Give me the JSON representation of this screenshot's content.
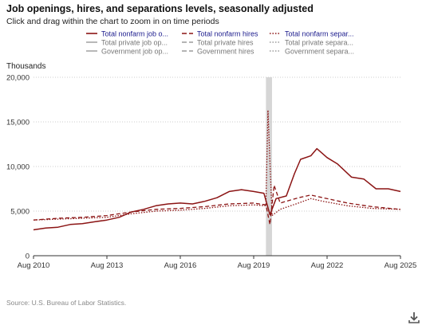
{
  "title": "Job openings, hires, and separations levels, seasonally adjusted",
  "subtitle": "Click and drag within the chart to zoom in on time periods",
  "source": "Source: U.S. Bureau of Labor Statistics.",
  "download_icon": "download-icon",
  "colors": {
    "primary": "#8b1414",
    "secondary": "#888888",
    "legend_active_text": "#1a1a8c",
    "legend_inactive_text": "#777777",
    "recession": "#cfcfcf"
  },
  "chart_data": {
    "type": "line",
    "ylabel": "Thousands",
    "ylim": [
      0,
      20000
    ],
    "yticks": [
      "0",
      "5,000",
      "10,000",
      "15,000",
      "20,000"
    ],
    "xlim": [
      "2010-08",
      "2025-08"
    ],
    "xticks": [
      "Aug 2010",
      "Aug 2013",
      "Aug 2016",
      "Aug 2019",
      "Aug 2022",
      "Aug 2025"
    ],
    "grid": true,
    "legend_placement": "top",
    "shaded_period": [
      "2020-02",
      "2020-05"
    ],
    "series": [
      {
        "name": "Total nonfarm job o...",
        "style": "solid",
        "visible": true,
        "values": [
          [
            "2010-08",
            2900
          ],
          [
            "2011-02",
            3100
          ],
          [
            "2011-08",
            3200
          ],
          [
            "2012-02",
            3500
          ],
          [
            "2012-08",
            3600
          ],
          [
            "2013-02",
            3800
          ],
          [
            "2013-08",
            4000
          ],
          [
            "2014-02",
            4300
          ],
          [
            "2014-08",
            4900
          ],
          [
            "2015-02",
            5200
          ],
          [
            "2015-08",
            5600
          ],
          [
            "2016-02",
            5800
          ],
          [
            "2016-08",
            5900
          ],
          [
            "2017-02",
            5800
          ],
          [
            "2017-08",
            6100
          ],
          [
            "2018-02",
            6500
          ],
          [
            "2018-08",
            7200
          ],
          [
            "2019-02",
            7400
          ],
          [
            "2019-08",
            7200
          ],
          [
            "2020-01",
            7000
          ],
          [
            "2020-04",
            4600
          ],
          [
            "2020-07",
            6400
          ],
          [
            "2020-12",
            6700
          ],
          [
            "2021-04",
            9200
          ],
          [
            "2021-07",
            10800
          ],
          [
            "2021-12",
            11200
          ],
          [
            "2022-03",
            12000
          ],
          [
            "2022-08",
            11000
          ],
          [
            "2023-01",
            10300
          ],
          [
            "2023-08",
            8800
          ],
          [
            "2024-02",
            8600
          ],
          [
            "2024-08",
            7500
          ],
          [
            "2025-02",
            7500
          ],
          [
            "2025-08",
            7200
          ]
        ]
      },
      {
        "name": "Total nonfarm hires",
        "style": "dashed",
        "visible": true,
        "values": [
          [
            "2010-08",
            4000
          ],
          [
            "2011-08",
            4200
          ],
          [
            "2012-08",
            4300
          ],
          [
            "2013-08",
            4500
          ],
          [
            "2014-08",
            4900
          ],
          [
            "2015-08",
            5200
          ],
          [
            "2016-08",
            5300
          ],
          [
            "2017-08",
            5500
          ],
          [
            "2018-08",
            5800
          ],
          [
            "2019-08",
            5900
          ],
          [
            "2020-02",
            5700
          ],
          [
            "2020-04",
            3500
          ],
          [
            "2020-06",
            7900
          ],
          [
            "2020-09",
            5900
          ],
          [
            "2021-06",
            6500
          ],
          [
            "2021-12",
            6800
          ],
          [
            "2022-06",
            6500
          ],
          [
            "2023-06",
            5900
          ],
          [
            "2024-06",
            5500
          ],
          [
            "2025-08",
            5200
          ]
        ]
      },
      {
        "name": "Total nonfarm separ...",
        "style": "dotted",
        "visible": true,
        "values": [
          [
            "2010-08",
            4000
          ],
          [
            "2011-08",
            4100
          ],
          [
            "2012-08",
            4200
          ],
          [
            "2013-08",
            4300
          ],
          [
            "2014-08",
            4700
          ],
          [
            "2015-08",
            5000
          ],
          [
            "2016-08",
            5100
          ],
          [
            "2017-08",
            5300
          ],
          [
            "2018-08",
            5600
          ],
          [
            "2019-08",
            5700
          ],
          [
            "2020-02",
            5600
          ],
          [
            "2020-03",
            16300
          ],
          [
            "2020-05",
            4500
          ],
          [
            "2020-09",
            5200
          ],
          [
            "2021-06",
            5900
          ],
          [
            "2021-12",
            6400
          ],
          [
            "2022-06",
            6100
          ],
          [
            "2023-06",
            5600
          ],
          [
            "2024-06",
            5300
          ],
          [
            "2025-08",
            5200
          ]
        ]
      },
      {
        "name": "Total private job op...",
        "style": "solid",
        "visible": false,
        "values": []
      },
      {
        "name": "Total private hires",
        "style": "dashed",
        "visible": false,
        "values": []
      },
      {
        "name": "Total private separa...",
        "style": "dotted",
        "visible": false,
        "values": []
      },
      {
        "name": "Government job op...",
        "style": "solid",
        "visible": false,
        "values": []
      },
      {
        "name": "Government hires",
        "style": "dashed",
        "visible": false,
        "values": []
      },
      {
        "name": "Government separa...",
        "style": "dotted",
        "visible": false,
        "values": []
      }
    ]
  }
}
